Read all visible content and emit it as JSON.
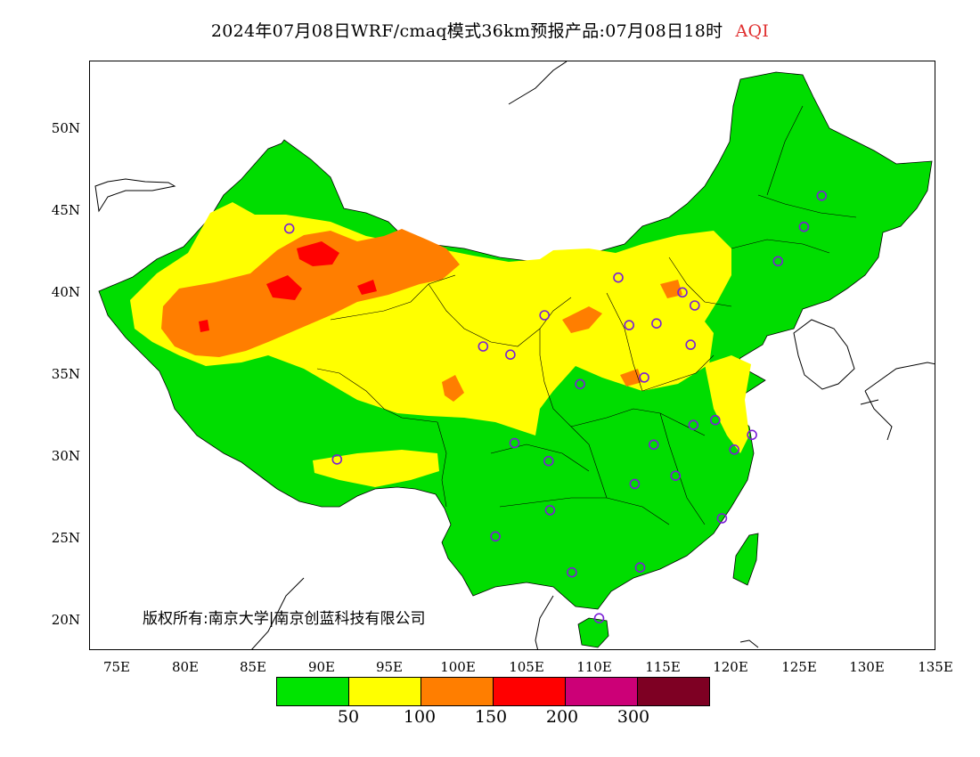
{
  "title": {
    "main": "2024年07月08日WRF/cmaq模式36km预报产品:07月08日18时",
    "variable": "AQI"
  },
  "axes": {
    "y_labels": [
      "50N",
      "45N",
      "40N",
      "35N",
      "30N",
      "25N",
      "20N"
    ],
    "x_labels": [
      "75E",
      "80E",
      "85E",
      "90E",
      "95E",
      "100E",
      "105E",
      "110E",
      "115E",
      "120E",
      "125E",
      "130E",
      "135E"
    ],
    "lon_range": [
      73,
      135
    ],
    "lat_range": [
      18,
      54
    ]
  },
  "copyright": "版权所有:南京大学|南京创蓝科技有限公司",
  "legend": {
    "colors": [
      "#00e400",
      "#ffff00",
      "#ff7e00",
      "#ff0000",
      "#cc0077",
      "#7e0023"
    ],
    "labels": [
      "50",
      "100",
      "150",
      "200",
      "300"
    ]
  },
  "stations": [
    {
      "lon": 87.6,
      "lat": 43.8
    },
    {
      "lon": 91.1,
      "lat": 29.7
    },
    {
      "lon": 101.8,
      "lat": 36.6
    },
    {
      "lon": 103.8,
      "lat": 36.1
    },
    {
      "lon": 106.3,
      "lat": 38.5
    },
    {
      "lon": 111.7,
      "lat": 40.8
    },
    {
      "lon": 104.1,
      "lat": 30.7
    },
    {
      "lon": 106.6,
      "lat": 29.6
    },
    {
      "lon": 106.7,
      "lat": 26.6
    },
    {
      "lon": 102.7,
      "lat": 25.0
    },
    {
      "lon": 108.3,
      "lat": 22.8
    },
    {
      "lon": 110.3,
      "lat": 20.0
    },
    {
      "lon": 113.3,
      "lat": 23.1
    },
    {
      "lon": 112.9,
      "lat": 28.2
    },
    {
      "lon": 114.3,
      "lat": 30.6
    },
    {
      "lon": 108.9,
      "lat": 34.3
    },
    {
      "lon": 113.6,
      "lat": 34.7
    },
    {
      "lon": 112.5,
      "lat": 37.9
    },
    {
      "lon": 114.5,
      "lat": 38.0
    },
    {
      "lon": 117.0,
      "lat": 36.7
    },
    {
      "lon": 117.3,
      "lat": 39.1
    },
    {
      "lon": 116.4,
      "lat": 39.9
    },
    {
      "lon": 123.4,
      "lat": 41.8
    },
    {
      "lon": 125.3,
      "lat": 43.9
    },
    {
      "lon": 126.6,
      "lat": 45.8
    },
    {
      "lon": 117.2,
      "lat": 31.8
    },
    {
      "lon": 118.8,
      "lat": 32.1
    },
    {
      "lon": 121.5,
      "lat": 31.2
    },
    {
      "lon": 120.2,
      "lat": 30.3
    },
    {
      "lon": 115.9,
      "lat": 28.7
    },
    {
      "lon": 119.3,
      "lat": 26.1
    }
  ]
}
